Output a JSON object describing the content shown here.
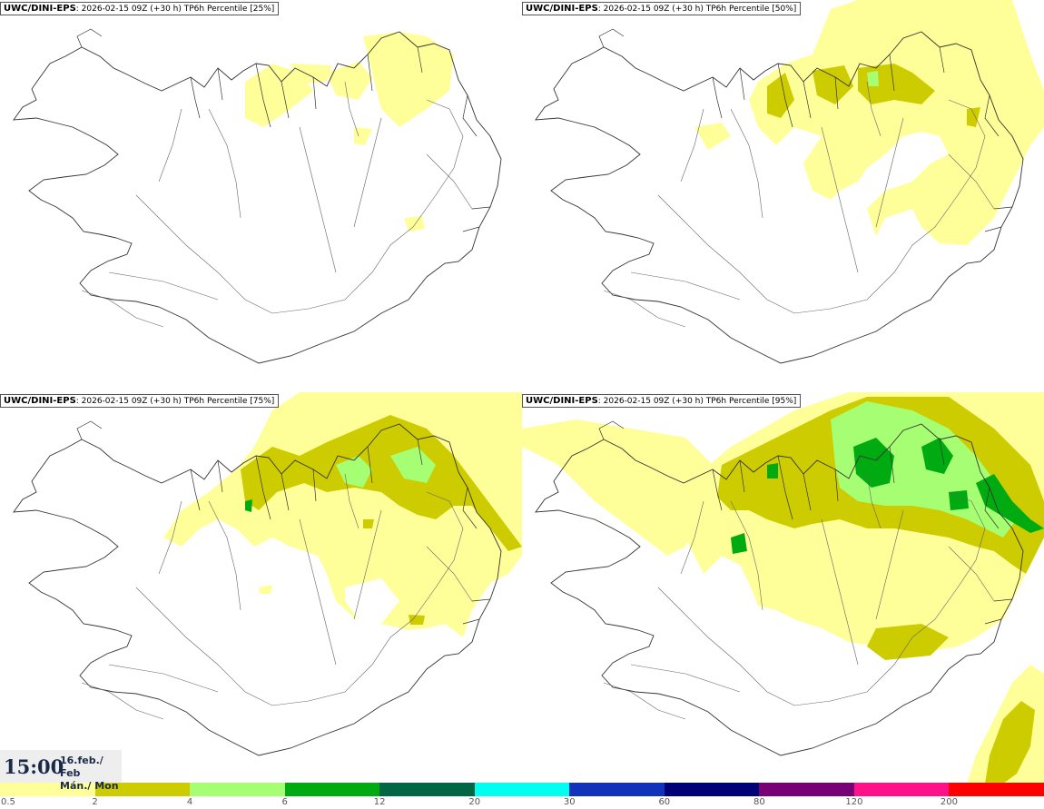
{
  "panels": [
    {
      "model": "UWC/DINI-EPS",
      "run": ": 2026-02-15 09Z (+30 h)",
      "product": " TP6h Percentile [25%]",
      "percentile": 25
    },
    {
      "model": "UWC/DINI-EPS",
      "run": ": 2026-02-15 09Z (+30 h)",
      "product": " TP6h Percentile [50%]",
      "percentile": 50
    },
    {
      "model": "UWC/DINI-EPS",
      "run": ": 2026-02-15 09Z (+30 h)",
      "product": " TP6h Percentile [75%]",
      "percentile": 75
    },
    {
      "model": "UWC/DINI-EPS",
      "run": ": 2026-02-15 09Z (+30 h)",
      "product": " TP6h Percentile [95%]",
      "percentile": 95
    }
  ],
  "valid_time": {
    "time": "15:00",
    "date_line1": "16.feb./ Feb",
    "date_line2": "Mán./ Mon"
  },
  "legend": {
    "ticks": [
      "0.5",
      "2",
      "4",
      "6",
      "12",
      "20",
      "30",
      "60",
      "80",
      "120",
      "200"
    ],
    "colors": [
      "#ffff99",
      "#cccc00",
      "#a6ff73",
      "#00aa11",
      "#006644",
      "#00ffee",
      "#1133bb",
      "#000077",
      "#770077",
      "#ff1188",
      "#ff0000"
    ]
  },
  "colors": {
    "coast": "#333333",
    "roads": "#666666"
  }
}
